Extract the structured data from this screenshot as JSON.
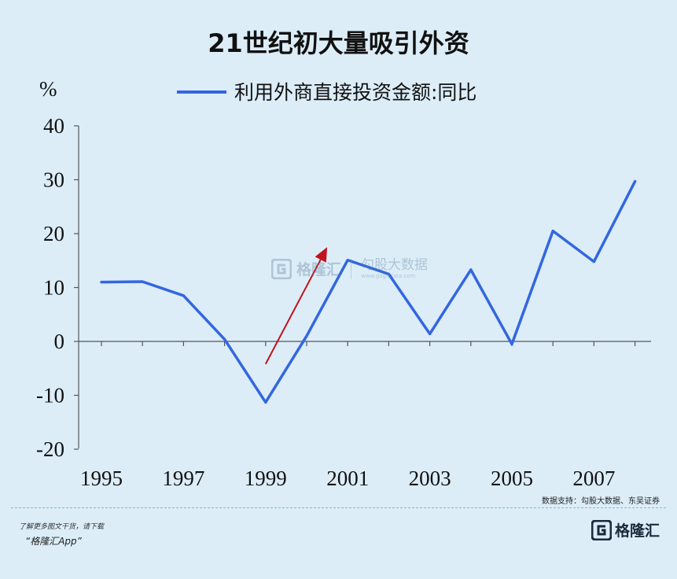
{
  "title": "21世纪初大量吸引外资",
  "chart_data": {
    "type": "line",
    "ylabel": "%",
    "ylim": [
      -20,
      40
    ],
    "yticks": [
      40,
      30,
      20,
      10,
      0,
      -10,
      -20
    ],
    "xlim": [
      1995,
      2008
    ],
    "xticks": [
      1995,
      1997,
      1999,
      2001,
      2003,
      2005,
      2007
    ],
    "series": [
      {
        "name": "利用外商直接投资金额:同比",
        "x": [
          1995,
          1996,
          1997,
          1998,
          1999,
          2000,
          2001,
          2002,
          2003,
          2004,
          2005,
          2006,
          2007,
          2008
        ],
        "values": [
          11.0,
          11.1,
          8.5,
          0.4,
          -11.3,
          1.0,
          15.1,
          12.5,
          1.4,
          13.3,
          -0.5,
          20.5,
          14.8,
          29.7
        ],
        "color": "#3366e0"
      }
    ],
    "annotation": {
      "type": "arrow",
      "color": "#c0131d",
      "from": [
        1999.0,
        -4.2
      ],
      "to": [
        2000.5,
        17.5
      ]
    }
  },
  "source_text": "数据支持：勾股大数据、东吴证券",
  "footer": {
    "note": "了解更多图文干货，请下载",
    "app": "“格隆汇App”"
  },
  "brand": {
    "name": "格隆汇",
    "icon": "g-logo-icon"
  },
  "watermark": {
    "left": "格隆汇",
    "right": "勾股大数据",
    "right_small": "www.gogudata.com"
  }
}
